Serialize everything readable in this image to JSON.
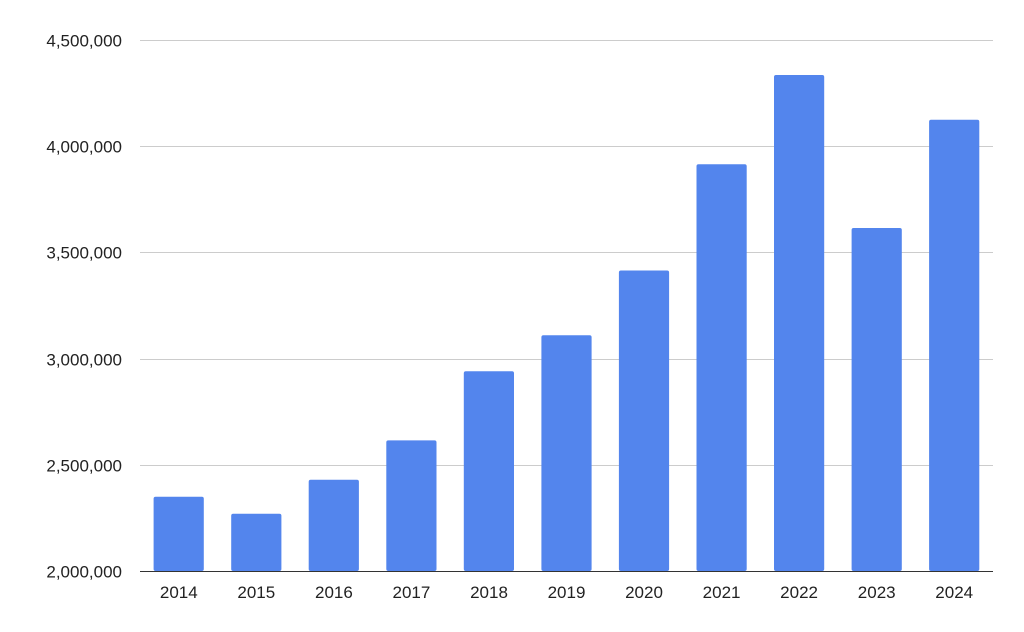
{
  "chart_data": {
    "type": "bar",
    "title": "",
    "xlabel": "",
    "ylabel": "",
    "categories": [
      "2014",
      "2015",
      "2016",
      "2017",
      "2018",
      "2019",
      "2020",
      "2021",
      "2022",
      "2023",
      "2024"
    ],
    "values": [
      2350000,
      2270000,
      2430000,
      2615000,
      2940000,
      3110000,
      3415000,
      3915000,
      4335000,
      3615000,
      4125000
    ],
    "ylim": [
      2000000,
      4500000
    ],
    "yticks": [
      2000000,
      2500000,
      3000000,
      3500000,
      4000000,
      4500000
    ],
    "ytick_labels": [
      "2,000,000",
      "2,500,000",
      "3,000,000",
      "3,500,000",
      "4,000,000",
      "4,500,000"
    ],
    "grid": true,
    "legend": "none",
    "bar_color": "#5385ed"
  }
}
